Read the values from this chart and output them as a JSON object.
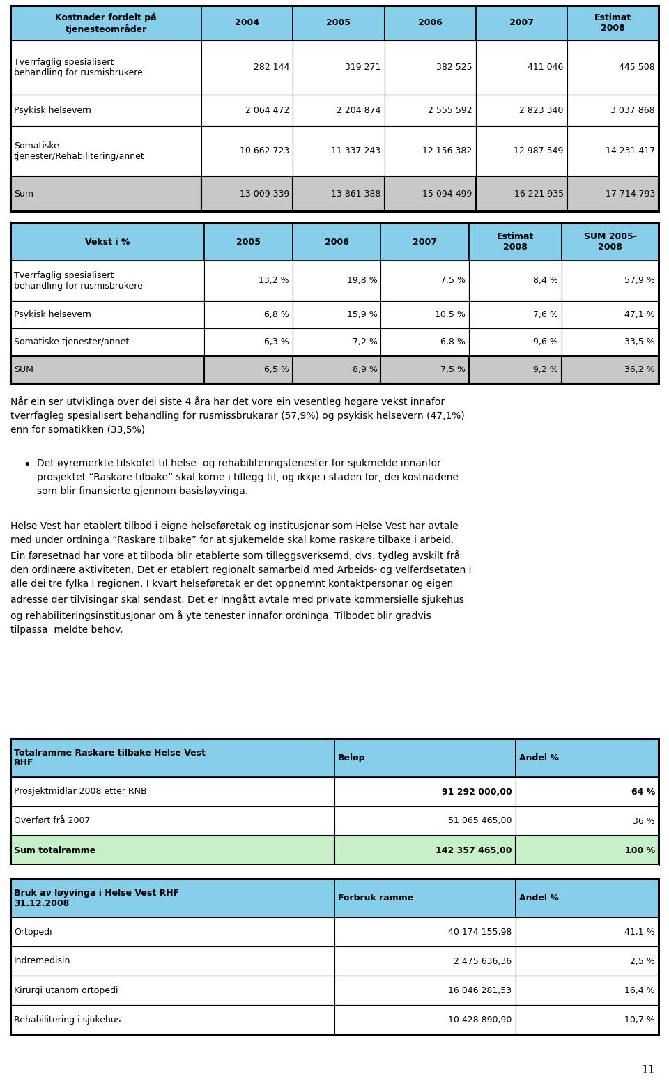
{
  "t1_headers": [
    "Kostnader fordelt på\ntjenesteområder",
    "2004",
    "2005",
    "2006",
    "2007",
    "Estimat\n2008"
  ],
  "t1_rows": [
    [
      "Tverrfaglig spesialisert\nbehandling for rusmisbrukere",
      "282 144",
      "319 271",
      "382 525",
      "411 046",
      "445 508"
    ],
    [
      "Psykisk helsevern",
      "2 064 472",
      "2 204 874",
      "2 555 592",
      "2 823 340",
      "3 037 868"
    ],
    [
      "Somatiske\ntjenester/Rehabilitering/annet",
      "10 662 723",
      "11 337 243",
      "12 156 382",
      "12 987 549",
      "14 231 417"
    ],
    [
      "Sum",
      "13 009 339",
      "13 861 388",
      "15 094 499",
      "16 221 935",
      "17 714 793"
    ]
  ],
  "t2_headers": [
    "Vekst i %",
    "2005",
    "2006",
    "2007",
    "Estimat\n2008",
    "SUM 2005-\n2008"
  ],
  "t2_rows": [
    [
      "Tverrfaglig spesialisert\nbehandling for rusmisbrukere",
      "13,2 %",
      "19,8 %",
      "7,5 %",
      "8,4 %",
      "57,9 %"
    ],
    [
      "Psykisk helsevern",
      "6,8 %",
      "15,9 %",
      "10,5 %",
      "7,6 %",
      "47,1 %"
    ],
    [
      "Somatiske tjenester/annet",
      "6,3 %",
      "7,2 %",
      "6,8 %",
      "9,6 %",
      "33,5 %"
    ],
    [
      "SUM",
      "6,5 %",
      "8,9 %",
      "7,5 %",
      "9,2 %",
      "36,2 %"
    ]
  ],
  "para1": "Når ein ser utviklinga over dei siste 4 åra har det vore ein vesentleg høgare vekst innafor\ntverrfagleg spesialisert behandling for rusmissbrukarar (57,9%) og psykisk helsevern (47,1%)\nenn for somatikken (33,5%)",
  "bullet1": "Det øyremerkte tilskotet til helse- og rehabiliteringstenester for sjukmelde innanfor\nprosjektet “Raskare tilbake” skal kome i tillegg til, og ikkje i staden for, dei kostnadene\nsom blir finansierte gjennom basisløyvinga.",
  "para2_lines": [
    "Helse Vest har etablert tilbod i eigne helseføretak og institusjonar som Helse Vest har avtale",
    "med under ordninga “Raskare tilbake” for at sjukemelde skal kome raskare tilbake i arbeid.",
    "Ein føresetnad har vore at tilboda blir etablerte som tilleggsverksemd, dvs. tydleg avskilt frå",
    "den ordinære aktiviteten. Det er etablert regionalt samarbeid med Arbeids- og velferdsetaten i",
    "alle dei tre fylka i regionen. I kvart helseføretak er det oppnemnt kontaktpersonar og eigen",
    "adresse der tilvisingar skal sendast. Det er inngått avtale med private kommersielle sjukehus",
    "og rehabiliteringsinstitusjonar om å yte tenester innafor ordninga. Tilbodet blir gradvis",
    "tilpassa  meldte behov."
  ],
  "t3_headers": [
    "Totalramme Raskare tilbake Helse Vest\nRHF",
    "Beløp",
    "Andel %"
  ],
  "t3_rows": [
    [
      "Prosjektmidlar 2008 etter RNB",
      "91 292 000,00",
      "64 %"
    ],
    [
      "Overført frå 2007",
      "51 065 465,00",
      "36 %"
    ],
    [
      "Sum totalramme",
      "142 357 465,00",
      "100 %"
    ]
  ],
  "t3_sum_row_bg": "#c8f0c8",
  "t4_headers": [
    "Bruk av løyvinga i Helse Vest RHF\n31.12.2008",
    "Forbruk ramme",
    "Andel %"
  ],
  "t4_rows": [
    [
      "Ortopedi",
      "40 174 155,98",
      "41,1 %"
    ],
    [
      "Indremedisin",
      "2 475 636,36",
      "2,5 %"
    ],
    [
      "Kirurgi utanom ortopedi",
      "16 046 281,53",
      "16,4 %"
    ],
    [
      "Rehabilitering i sjukehus",
      "10 428 890,90",
      "10,7 %"
    ]
  ],
  "header_bg": "#87CEEB",
  "sum_bg_gray": "#C8C8C8",
  "white_bg": "#FFFFFF",
  "page_number": "11",
  "fig_w": 960,
  "fig_h": 1551
}
